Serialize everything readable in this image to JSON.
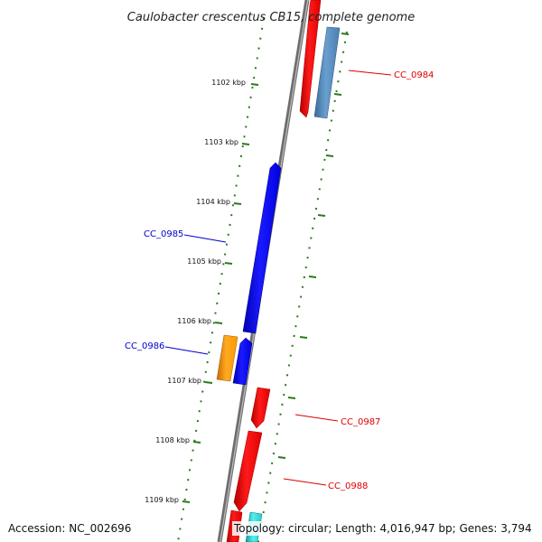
{
  "title": "Caulobacter crescentus CB15, complete genome",
  "ticks": [
    "1102 kbp",
    "1103 kbp",
    "1104 kbp",
    "1105 kbp",
    "1106 kbp",
    "1107 kbp",
    "1108 kbp",
    "1109 kbp"
  ],
  "genes": [
    {
      "label": "CC_0984",
      "strand": "reverse",
      "color": "#dd0000"
    },
    {
      "label": "CC_0985",
      "strand": "forward",
      "color": "#0000cc"
    },
    {
      "label": "CC_0986",
      "strand": "forward",
      "color": "#0000cc"
    },
    {
      "label": "CC_0987",
      "strand": "reverse",
      "color": "#dd0000"
    },
    {
      "label": "CC_0988",
      "strand": "reverse",
      "color": "#dd0000"
    }
  ],
  "colors": {
    "backbone": "#7a7a7a",
    "tick_dots": "#2a7a1a",
    "reverse_gene": "#ff0000",
    "forward_gene": "#0000ff",
    "steelblue_gene": "#4a7fb0",
    "orange_gene": "#ff9900",
    "cyan_gene": "#22cccc"
  },
  "footer": {
    "accession": "Accession: NC_002696",
    "topology": "Topology: circular; Length: 4,016,947 bp; Genes: 3,794"
  }
}
